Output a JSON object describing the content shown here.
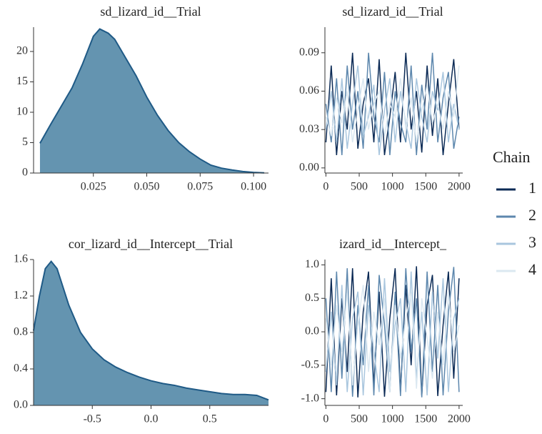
{
  "chart_data": [
    {
      "type": "density",
      "title": "sd_lizard_id__Trial",
      "fill": "#6494b0",
      "color": "#1f5a86",
      "x": [
        0,
        0.005,
        0.01,
        0.015,
        0.02,
        0.025,
        0.028,
        0.032,
        0.035,
        0.04,
        0.045,
        0.05,
        0.055,
        0.06,
        0.065,
        0.07,
        0.075,
        0.08,
        0.085,
        0.09,
        0.095,
        0.1,
        0.105
      ],
      "values": [
        4.9,
        8,
        11,
        14,
        18,
        22.5,
        23.7,
        23,
        22,
        19,
        16,
        12.5,
        9.5,
        7,
        5,
        3.5,
        2.3,
        1.3,
        0.8,
        0.5,
        0.25,
        0.1,
        0.03
      ],
      "xlim": [
        -0.003,
        0.107
      ],
      "ylim": [
        0,
        24
      ],
      "xticks": [
        0.025,
        {
          "value": 0.05,
          "label": "0.050"
        },
        0.075,
        {
          "value": 0.1,
          "label": "0.100"
        }
      ],
      "yticks": [
        0,
        5,
        10,
        15,
        20
      ]
    },
    {
      "type": "trace",
      "title": "sd_lizard_id__Trial",
      "legend_title": "Chain",
      "x": [
        0,
        80,
        160,
        240,
        320,
        400,
        480,
        560,
        640,
        720,
        800,
        880,
        960,
        1040,
        1120,
        1200,
        1280,
        1360,
        1440,
        1520,
        1600,
        1680,
        1760,
        1840,
        1920,
        2000
      ],
      "series": [
        {
          "name": "1",
          "color": "#0b2a55",
          "values": [
            0.02,
            0.08,
            0.01,
            0.06,
            0.03,
            0.09,
            0.015,
            0.05,
            0.07,
            0.02,
            0.085,
            0.01,
            0.04,
            0.075,
            0.02,
            0.09,
            0.03,
            0.06,
            0.012,
            0.08,
            0.025,
            0.07,
            0.01,
            0.05,
            0.085,
            0.03
          ]
        },
        {
          "name": "2",
          "color": "#5d87ad",
          "values": [
            0.05,
            0.02,
            0.07,
            0.01,
            0.08,
            0.03,
            0.06,
            0.015,
            0.09,
            0.04,
            0.02,
            0.075,
            0.01,
            0.06,
            0.035,
            0.02,
            0.08,
            0.01,
            0.065,
            0.03,
            0.09,
            0.02,
            0.055,
            0.075,
            0.015,
            0.04
          ]
        },
        {
          "name": "3",
          "color": "#a9c6de",
          "values": [
            0.03,
            0.06,
            0.02,
            0.07,
            0.015,
            0.05,
            0.08,
            0.025,
            0.04,
            0.065,
            0.01,
            0.045,
            0.07,
            0.02,
            0.06,
            0.035,
            0.015,
            0.07,
            0.04,
            0.02,
            0.06,
            0.045,
            0.075,
            0.02,
            0.05,
            0.03
          ]
        },
        {
          "name": "4",
          "color": "#dbe8f1",
          "values": [
            0.04,
            0.025,
            0.055,
            0.035,
            0.06,
            0.02,
            0.045,
            0.07,
            0.03,
            0.05,
            0.06,
            0.025,
            0.05,
            0.04,
            0.07,
            0.03,
            0.055,
            0.02,
            0.045,
            0.065,
            0.035,
            0.05,
            0.03,
            0.06,
            0.04,
            0.08
          ]
        }
      ],
      "xlim": [
        -15,
        2055
      ],
      "ylim": [
        -0.004,
        0.11
      ],
      "xticks": [
        0,
        500,
        1000,
        1500,
        2000
      ],
      "yticks": [
        {
          "value": 0,
          "label": "0.00"
        },
        0.03,
        0.06,
        0.09
      ]
    },
    {
      "type": "density",
      "title": "cor_lizard_id__Intercept__Trial",
      "fill": "#6494b0",
      "color": "#1f5a86",
      "x": [
        -1,
        -0.95,
        -0.9,
        -0.85,
        -0.8,
        -0.75,
        -0.7,
        -0.6,
        -0.5,
        -0.4,
        -0.3,
        -0.2,
        -0.1,
        0,
        0.1,
        0.2,
        0.3,
        0.4,
        0.5,
        0.6,
        0.7,
        0.8,
        0.9,
        1
      ],
      "values": [
        0.82,
        1.2,
        1.5,
        1.58,
        1.5,
        1.3,
        1.1,
        0.8,
        0.62,
        0.5,
        0.42,
        0.36,
        0.31,
        0.27,
        0.24,
        0.22,
        0.19,
        0.17,
        0.15,
        0.13,
        0.12,
        0.12,
        0.11,
        0.06
      ],
      "xlim": [
        -1,
        1
      ],
      "ylim": [
        0,
        1.6
      ],
      "xticks": [
        -0.5,
        {
          "value": 0,
          "label": "0.0"
        },
        0.5
      ],
      "yticks": [
        {
          "value": 0,
          "label": "0.0"
        },
        0.4,
        0.8,
        1.2,
        1.6
      ]
    },
    {
      "type": "trace",
      "title": "izard_id__Intercept_",
      "x": [
        0,
        80,
        160,
        240,
        320,
        400,
        480,
        560,
        640,
        720,
        800,
        880,
        960,
        1040,
        1120,
        1200,
        1280,
        1360,
        1440,
        1520,
        1600,
        1680,
        1760,
        1840,
        1920,
        2000
      ],
      "series": [
        {
          "name": "1",
          "color": "#0b2a55",
          "values": [
            -0.9,
            0.8,
            -0.95,
            0.5,
            -0.6,
            0.95,
            -0.98,
            0.3,
            0.9,
            -0.8,
            0.6,
            -0.97,
            0.2,
            0.95,
            -0.9,
            0.7,
            -0.5,
            0.98,
            -0.95,
            0.4,
            0.85,
            -0.96,
            0.1,
            0.9,
            -0.7,
            0.8
          ]
        },
        {
          "name": "2",
          "color": "#5d87ad",
          "values": [
            0.5,
            -0.9,
            0.9,
            -0.7,
            0.95,
            -0.97,
            0.4,
            -0.5,
            0.7,
            -0.95,
            0.85,
            0.1,
            -0.9,
            0.6,
            -0.96,
            0.95,
            -0.3,
            0.5,
            -0.98,
            0.9,
            -0.6,
            0.7,
            -0.95,
            0.3,
            0.97,
            -0.9
          ]
        },
        {
          "name": "3",
          "color": "#a9c6de",
          "values": [
            -0.6,
            0.3,
            -0.8,
            0.7,
            -0.9,
            0.2,
            0.6,
            -0.95,
            0.4,
            -0.3,
            -0.9,
            0.8,
            -0.6,
            0.1,
            0.5,
            -0.9,
            0.9,
            -0.7,
            0.3,
            -0.95,
            0.6,
            -0.4,
            0.8,
            -0.9,
            0.2,
            0.5
          ]
        },
        {
          "name": "4",
          "color": "#dbe8f1",
          "values": [
            0.2,
            -0.5,
            0.4,
            -0.3,
            0.6,
            -0.8,
            0.1,
            0.7,
            -0.6,
            0.3,
            -0.2,
            0.5,
            -0.9,
            0.4,
            -0.4,
            0.2,
            0.6,
            -0.85,
            0.5,
            -0.1,
            -0.7,
            0.3,
            -0.5,
            0.6,
            -0.3,
            0.1
          ]
        }
      ],
      "xlim": [
        -15,
        2055
      ],
      "ylim": [
        -1.1,
        1.08
      ],
      "xticks": [
        0,
        500,
        1000,
        1500,
        2000
      ],
      "yticks": [
        {
          "value": -1,
          "label": "-1.0"
        },
        -0.5,
        {
          "value": 0,
          "label": "0.0"
        },
        0.5,
        {
          "value": 1,
          "label": "1.0"
        }
      ]
    }
  ]
}
